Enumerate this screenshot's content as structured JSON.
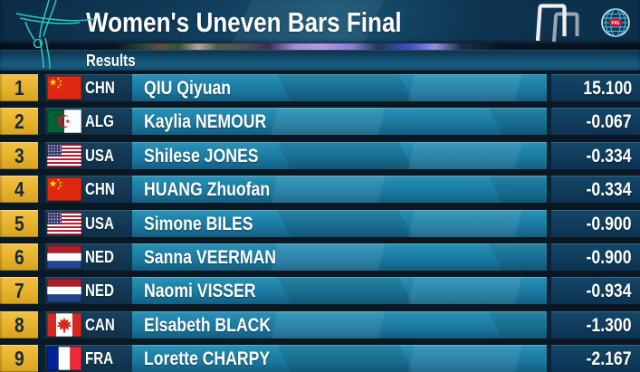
{
  "header": {
    "title": "Women's Uneven Bars Final",
    "fig_label": "FIG"
  },
  "results_bar": {
    "label": "Results"
  },
  "table": {
    "rows": [
      {
        "rank": "1",
        "noc": "CHN",
        "name": "QIU Qiyuan",
        "score": "15.100"
      },
      {
        "rank": "2",
        "noc": "ALG",
        "name": "Kaylia NEMOUR",
        "score": "-0.067"
      },
      {
        "rank": "3",
        "noc": "USA",
        "name": "Shilese JONES",
        "score": "-0.334"
      },
      {
        "rank": "4",
        "noc": "CHN",
        "name": "HUANG Zhuofan",
        "score": "-0.334"
      },
      {
        "rank": "5",
        "noc": "USA",
        "name": "Simone BILES",
        "score": "-0.900"
      },
      {
        "rank": "6",
        "noc": "NED",
        "name": "Sanna VEERMAN",
        "score": "-0.900"
      },
      {
        "rank": "7",
        "noc": "NED",
        "name": "Naomi VISSER",
        "score": "-0.934"
      },
      {
        "rank": "8",
        "noc": "CAN",
        "name": "Elsabeth BLACK",
        "score": "-1.300"
      },
      {
        "rank": "9",
        "noc": "FRA",
        "name": "Lorette CHARPY",
        "score": "-2.167"
      }
    ]
  },
  "colors": {
    "rank_gold": "#e9b42e",
    "row_teal": "#1d7ea5",
    "dark_navy": "#0d2f4a",
    "accent_teal": "#2ed2ca",
    "fig_red": "#c8102e",
    "text": "#ffffff"
  }
}
